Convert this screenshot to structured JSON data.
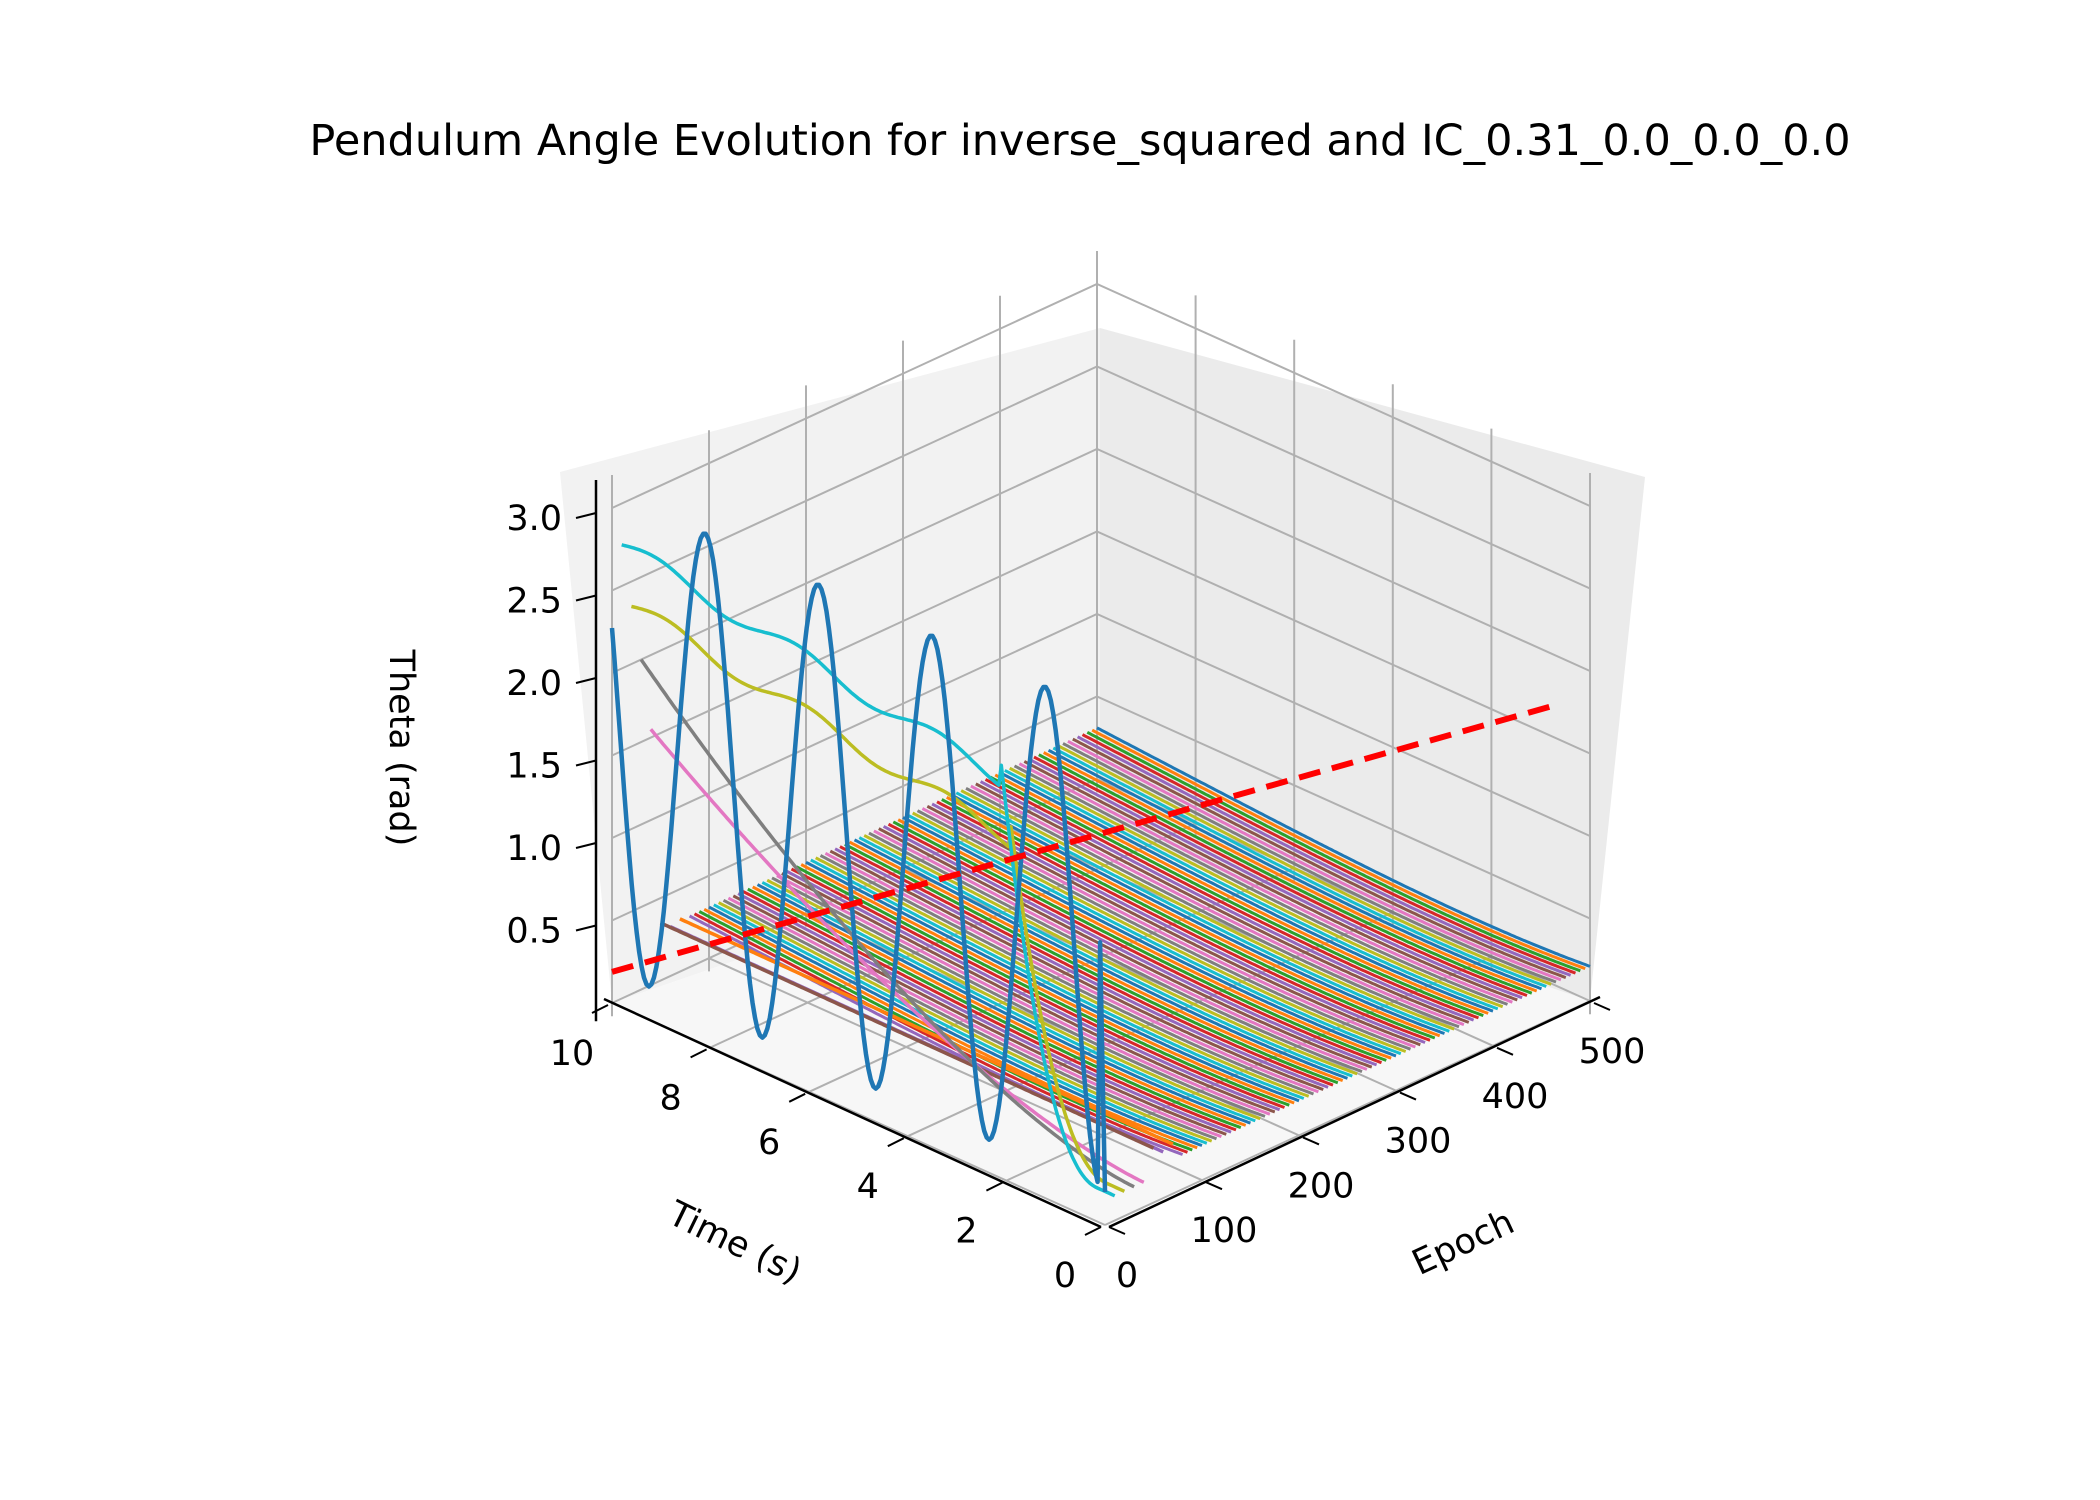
{
  "chart_data": {
    "type": "line",
    "title": "Pendulum Angle Evolution for inverse_squared and IC_0.31_0.0_0.0_0.0",
    "xlabel": "Epoch",
    "ylabel": "Time (s)",
    "zlabel": "Theta (rad)",
    "x_ticks": [
      "0",
      "100",
      "200",
      "300",
      "400",
      "500"
    ],
    "y_ticks": [
      "0",
      "2",
      "4",
      "6",
      "8",
      "10"
    ],
    "z_ticks": [
      "0.5",
      "1.0",
      "1.5",
      "2.0",
      "2.5",
      "3.0"
    ],
    "xlim": [
      0,
      500
    ],
    "ylim": [
      0,
      10
    ],
    "zlim": [
      0,
      3.2
    ],
    "grid": true,
    "legend": "none",
    "view": {
      "elev": 20,
      "azim": 45
    },
    "reference_line": {
      "name": "",
      "style": "dashed",
      "color": "#ff0000",
      "epoch": 0,
      "theta": 0.31
    },
    "highlight_series": [
      {
        "epoch": 0,
        "color": "#1f77b4",
        "style": "oscillation",
        "start": 2.0,
        "peak": 3.1,
        "trough": 0.2
      },
      {
        "epoch": 10,
        "color": "#17becf",
        "style": "drift",
        "start": 2.75
      },
      {
        "epoch": 20,
        "color": "#bcbd22",
        "style": "drift",
        "start": 2.35
      },
      {
        "epoch": 30,
        "color": "#7f7f7f",
        "style": "decay",
        "start": 2.0
      },
      {
        "epoch": 40,
        "color": "#e377c2",
        "style": "decay",
        "start": 1.55
      },
      {
        "epoch": 50,
        "color": "#8c564b",
        "style": "flat",
        "start": 0.35
      },
      {
        "epoch": 60,
        "color": "#9467bd",
        "style": "flat",
        "start": 0.3
      },
      {
        "epoch": 70,
        "color": "#ff7f0e",
        "style": "flat",
        "start": 0.32
      }
    ],
    "converged_series": {
      "epoch_start": 80,
      "epoch_end": 500,
      "epoch_step": 5,
      "theta_start": 0.31,
      "palette": [
        "#1f77b4",
        "#ff7f0e",
        "#2ca02c",
        "#d62728",
        "#9467bd",
        "#8c564b",
        "#e377c2",
        "#7f7f7f",
        "#bcbd22",
        "#17becf"
      ]
    }
  }
}
